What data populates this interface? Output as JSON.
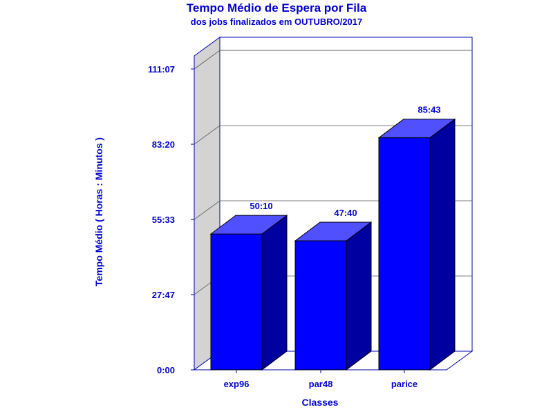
{
  "chart_data": {
    "type": "bar",
    "title": "Tempo Médio de Espera por Fila",
    "subtitle": "dos jobs finalizados em OUTUBRO/2017",
    "xlabel": "Classes",
    "ylabel": "Tempo Médio ( Horas : Minutos )",
    "categories": [
      "exp96",
      "par48",
      "parice"
    ],
    "values": [
      3010,
      2860,
      5143
    ],
    "value_labels": [
      "50:10",
      "47:40",
      "85:43"
    ],
    "y_ticks": [
      0,
      1667,
      3333,
      5000,
      6667
    ],
    "y_tick_labels": [
      "0:00",
      "27:47",
      "55:33",
      "83:20",
      "111:07"
    ],
    "ylim": [
      0,
      6667
    ],
    "grid": true,
    "colors": {
      "bar_front": "#0000ff",
      "bar_top": "#5050ff",
      "bar_side": "#0000a0",
      "text": "#0000cc",
      "axis": "#0000aa",
      "wall": "#d3d3d3"
    }
  }
}
